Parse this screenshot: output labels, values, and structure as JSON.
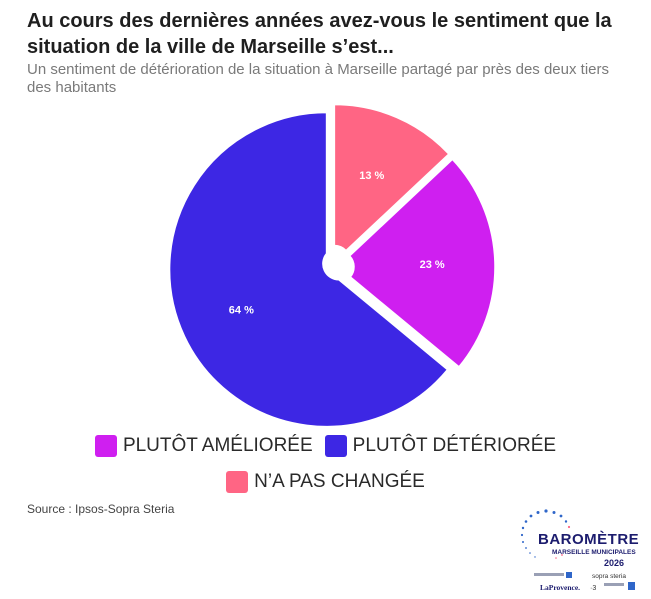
{
  "header": {
    "title": "Au cours des dernières années avez-vous le sentiment que la situation de la ville de Marseille s’est...",
    "subtitle": "Un sentiment de détérioration de la situation à Marseille partagé par près des deux tiers des habitants"
  },
  "chart_data": {
    "type": "pie",
    "slices": [
      {
        "name": "N’A PAS CHANGÉE",
        "value": 13,
        "label": "13 %",
        "color": "#ff6584"
      },
      {
        "name": "PLUTÔT AMÉLIORÉE",
        "value": 23,
        "label": "23 %",
        "color": "#cf1ff0"
      },
      {
        "name": "PLUTÔT DÉTÉRIORÉE",
        "value": 64,
        "label": "64 %",
        "color": "#3d27e4"
      }
    ],
    "legend": [
      {
        "label": "PLUTÔT AMÉLIORÉE",
        "color": "#cf1ff0"
      },
      {
        "label": "PLUTÔT DÉTÉRIORÉE",
        "color": "#3d27e4"
      },
      {
        "label": "N’A PAS CHANGÉE",
        "color": "#ff6584"
      }
    ],
    "legend_position": "bottom"
  },
  "footer": {
    "source": "Source : Ipsos-Sopra Steria"
  },
  "logo": {
    "title": "BAROMÈTRE",
    "subtitle": "MARSEILLE MUNICIPALES",
    "year": "2026",
    "sponsors": [
      "sopra steria",
      "LaProvence."
    ]
  }
}
